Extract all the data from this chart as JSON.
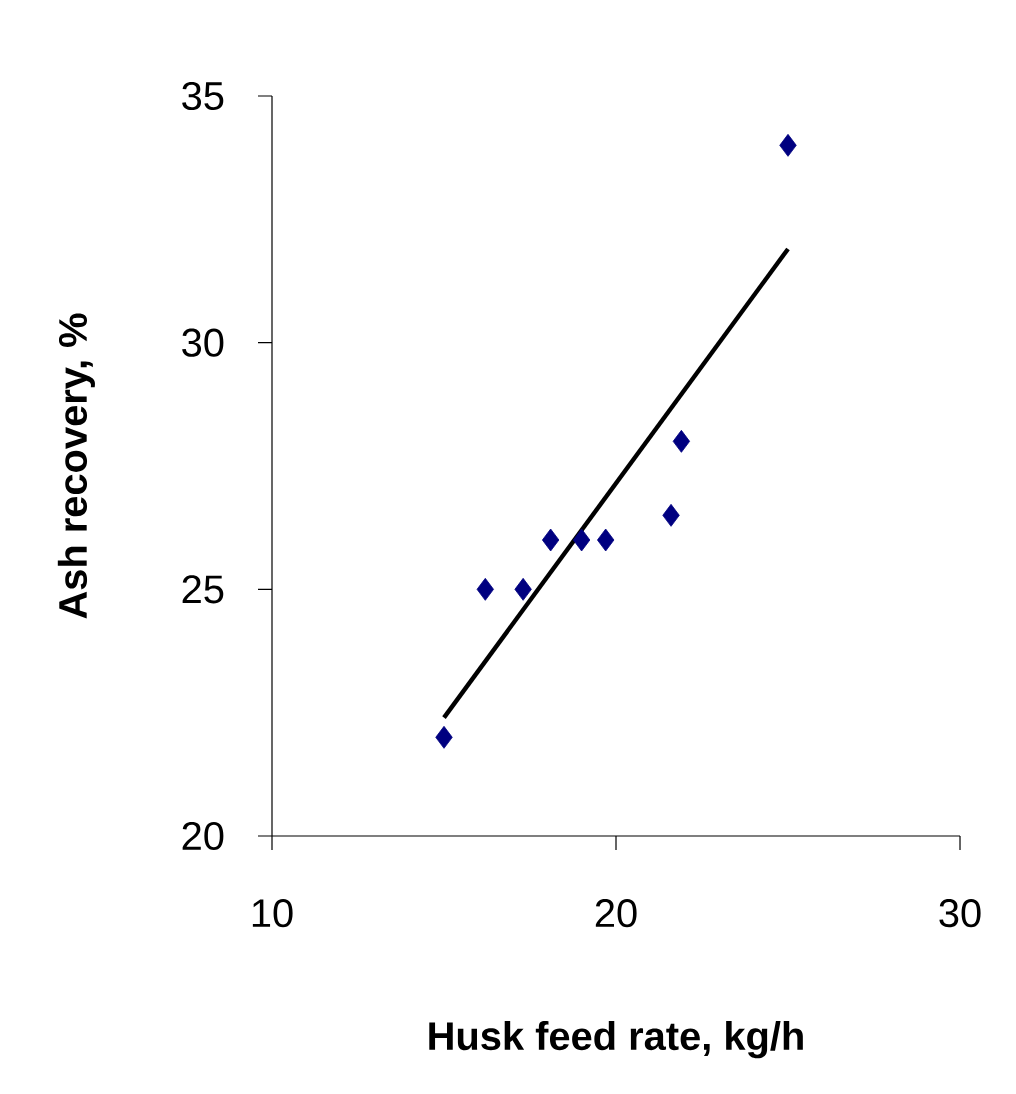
{
  "chart_data": {
    "type": "scatter",
    "xlabel": "Husk feed rate, kg/h",
    "ylabel": "Ash recovery, %",
    "xlim": [
      10,
      30
    ],
    "xticks": [
      10,
      20,
      30
    ],
    "ylim": [
      20,
      35
    ],
    "yticks": [
      20,
      25,
      30,
      35
    ],
    "grid": false,
    "series": [
      {
        "color": "#000080",
        "marker": "diamond",
        "x": [
          15,
          16.2,
          17.3,
          18.1,
          19.0,
          19.7,
          21.6,
          21.9,
          25.0
        ],
        "values": [
          22,
          25,
          25,
          26,
          26,
          26,
          26.5,
          28,
          34
        ]
      },
      {
        "type": "line",
        "color": "#000000",
        "marker": "none",
        "line_style": "solid",
        "x": [
          15,
          25
        ],
        "values": [
          22.4,
          31.9
        ]
      }
    ]
  }
}
